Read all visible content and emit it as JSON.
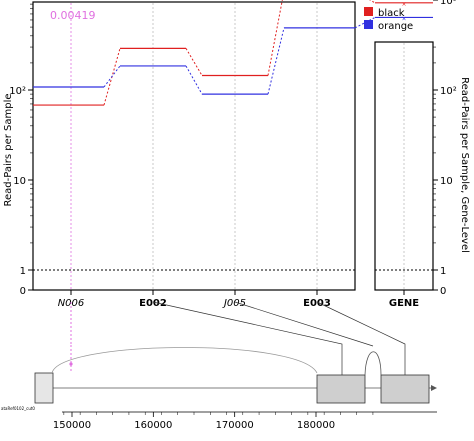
{
  "chart_data": {
    "type": "line",
    "annotation": "0.00419",
    "ylabel_left": "Read-Pairs per Sample",
    "ylabel_right": "Read-Pairs per Sample, Gene-Level",
    "y_scale": "log",
    "y_ticks_left": [
      {
        "value": 0,
        "label": "0"
      },
      {
        "value": 1,
        "label": "1"
      },
      {
        "value": 10,
        "label": "10"
      },
      {
        "value": 100,
        "label": "10²"
      }
    ],
    "y_ticks_right": [
      {
        "value": 0,
        "label": "0"
      },
      {
        "value": 1,
        "label": "1"
      },
      {
        "value": 10,
        "label": "10"
      },
      {
        "value": 100,
        "label": "10²"
      },
      {
        "value": 1000,
        "label": "10³"
      }
    ],
    "categories": [
      "N006",
      "E002",
      "J005",
      "E003"
    ],
    "category_styles": [
      "italic",
      "bold",
      "italic",
      "bold"
    ],
    "gene_label": "GENE",
    "legend": [
      {
        "name": "black",
        "color": "#e02020"
      },
      {
        "name": "orange",
        "color": "#3030e0"
      }
    ],
    "series": [
      {
        "name": "black",
        "color": "#e02020",
        "values": [
          68,
          290,
          145,
          1250
        ],
        "gene_value": 930
      },
      {
        "name": "orange",
        "color": "#3030e0",
        "values": [
          108,
          185,
          90,
          490
        ],
        "gene_value": 640
      }
    ],
    "genome_axis": {
      "ticks": [
        {
          "value": 150000,
          "label": "150000"
        },
        {
          "value": 160000,
          "label": "160000"
        },
        {
          "value": 170000,
          "label": "170000"
        },
        {
          "value": 180000,
          "label": "180000"
        }
      ],
      "corner_label": "ataRef0102_cut0"
    }
  }
}
